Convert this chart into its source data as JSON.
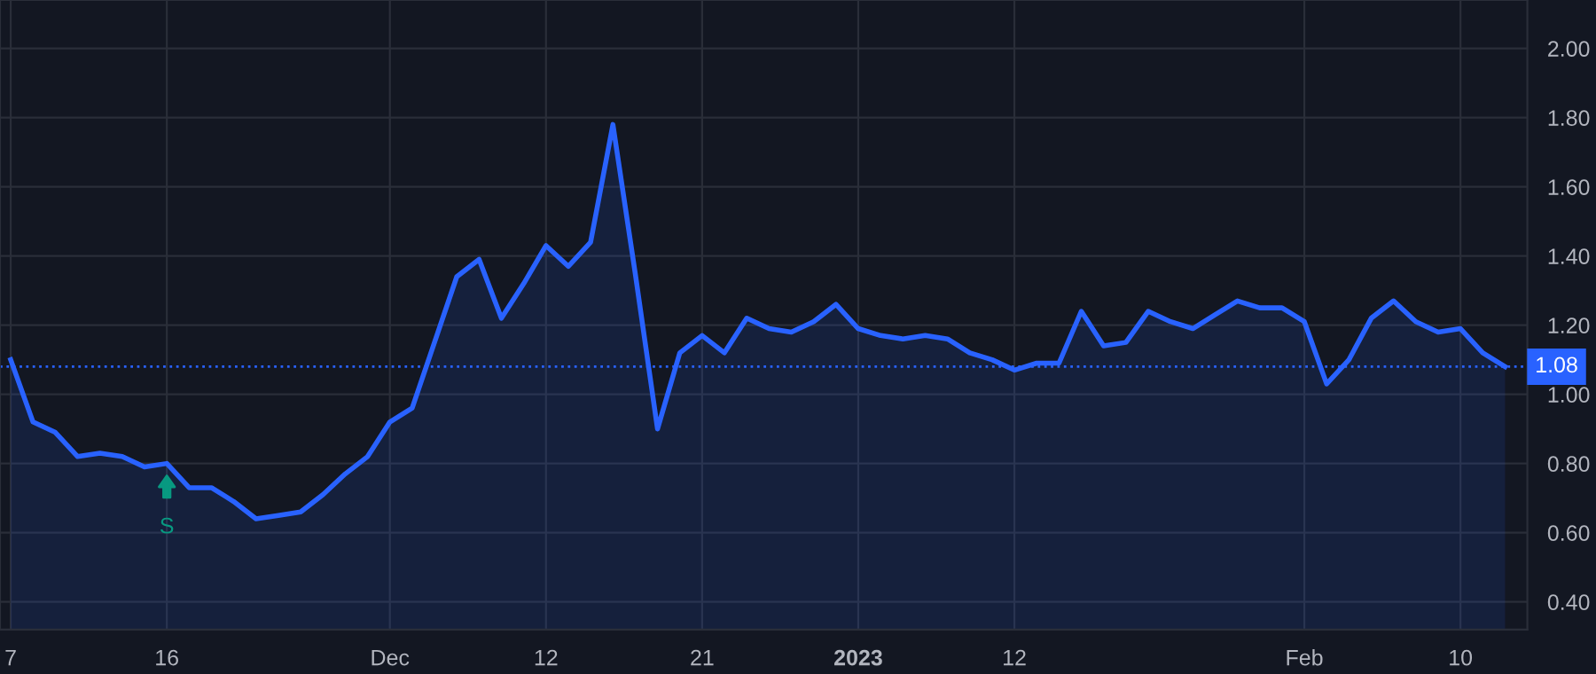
{
  "chart_data": {
    "type": "area",
    "categories": [
      "7",
      null,
      null,
      null,
      null,
      null,
      null,
      "16",
      null,
      null,
      null,
      null,
      null,
      null,
      null,
      null,
      null,
      "Dec",
      null,
      null,
      null,
      null,
      null,
      null,
      "12",
      null,
      null,
      null,
      null,
      null,
      null,
      "21",
      null,
      null,
      null,
      null,
      null,
      null,
      "2023",
      null,
      null,
      null,
      null,
      null,
      null,
      "12",
      null,
      null,
      null,
      null,
      null,
      null,
      null,
      null,
      null,
      null,
      null,
      null,
      "Feb",
      null,
      null,
      null,
      null,
      null,
      null,
      "10",
      null,
      null
    ],
    "series": [
      {
        "color": "#2962ff",
        "values": [
          1.1,
          0.92,
          0.89,
          0.82,
          0.83,
          0.82,
          0.79,
          0.8,
          0.73,
          0.73,
          0.69,
          0.64,
          0.65,
          0.66,
          0.71,
          0.77,
          0.82,
          0.92,
          0.96,
          1.15,
          1.34,
          1.39,
          1.22,
          1.32,
          1.43,
          1.37,
          1.44,
          1.78,
          1.35,
          0.9,
          1.12,
          1.17,
          1.12,
          1.22,
          1.19,
          1.18,
          1.21,
          1.26,
          1.19,
          1.17,
          1.16,
          1.17,
          1.16,
          1.12,
          1.1,
          1.07,
          1.09,
          1.09,
          1.24,
          1.14,
          1.15,
          1.24,
          1.21,
          1.19,
          1.23,
          1.27,
          1.25,
          1.25,
          1.21,
          1.03,
          1.1,
          1.22,
          1.27,
          1.21,
          1.18,
          1.19,
          1.12,
          1.08
        ]
      }
    ],
    "ylim": [
      0.32,
      2.14
    ],
    "yticks": [
      {
        "value": 0.4,
        "label": "0.40"
      },
      {
        "value": 0.6,
        "label": "0.60"
      },
      {
        "value": 0.8,
        "label": "0.80"
      },
      {
        "value": 1.0,
        "label": "1.00"
      },
      {
        "value": 1.2,
        "label": "1.20"
      },
      {
        "value": 1.4,
        "label": "1.40"
      },
      {
        "value": 1.6,
        "label": "1.60"
      },
      {
        "value": 1.8,
        "label": "1.80"
      },
      {
        "value": 2.0,
        "label": "2.00"
      }
    ],
    "grid": true,
    "ref_lines": [
      {
        "axis": "y",
        "value": 1.08,
        "label": "1.08",
        "color": "#2962ff",
        "line_style": "dotted"
      }
    ],
    "annotations": [
      {
        "text": "S",
        "x": "16",
        "y": 0.8
      }
    ]
  }
}
